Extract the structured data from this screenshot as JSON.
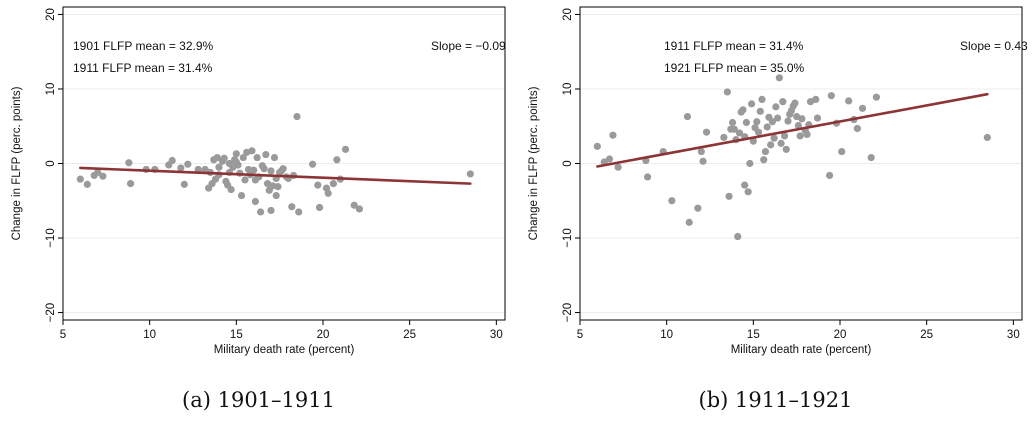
{
  "colors": {
    "points": "#9a9a9a",
    "fit_line": "#8c3436",
    "frame": "#000000",
    "grid": "#ececec"
  },
  "chart_data": [
    {
      "type": "scatter",
      "caption": "(a) 1901–1911",
      "xlabel": "Military death rate (percent)",
      "ylabel": "Change in FLFP (perc. points)",
      "xlim": [
        5,
        30.5
      ],
      "ylim": [
        -21,
        21
      ],
      "xticks": [
        5,
        10,
        15,
        20,
        25,
        30
      ],
      "xtick_labels": [
        "5",
        "10",
        "15",
        "20",
        "25",
        "30"
      ],
      "yticks": [
        -20,
        -10,
        0,
        10,
        20
      ],
      "ytick_labels": [
        "−20",
        "−10",
        "0",
        "10",
        "20"
      ],
      "grid": true,
      "annotations": {
        "mean1": "1901 FLFP mean = 32.9%",
        "mean2": "1911 FLFP mean = 31.4%",
        "slope": "Slope = −0.09"
      },
      "fit_line": {
        "x": [
          6.0,
          28.5
        ],
        "y": [
          -0.6,
          -2.7
        ]
      },
      "points": {
        "x": [
          6.0,
          6.4,
          6.8,
          7.0,
          7.3,
          8.8,
          8.9,
          9.8,
          10.3,
          11.1,
          11.3,
          11.8,
          12.0,
          12.2,
          12.8,
          13.2,
          13.4,
          13.5,
          13.6,
          13.7,
          13.8,
          13.9,
          14.0,
          14.0,
          14.2,
          14.3,
          14.4,
          14.5,
          14.6,
          14.6,
          14.7,
          14.8,
          14.9,
          15.0,
          15.0,
          15.1,
          15.2,
          15.3,
          15.4,
          15.5,
          15.6,
          15.7,
          15.8,
          15.9,
          16.0,
          16.1,
          16.1,
          16.2,
          16.3,
          16.4,
          16.5,
          16.6,
          16.7,
          16.8,
          16.9,
          17.0,
          17.0,
          17.1,
          17.2,
          17.3,
          17.3,
          17.4,
          17.5,
          17.6,
          17.7,
          17.9,
          18.0,
          18.2,
          18.3,
          18.5,
          18.6,
          19.4,
          19.7,
          19.8,
          20.2,
          20.3,
          20.6,
          20.8,
          21.0,
          21.3,
          21.8,
          22.1,
          28.5
        ],
        "y": [
          -2.1,
          -2.8,
          -1.6,
          -1.2,
          -1.7,
          0.1,
          -2.7,
          -0.8,
          -0.8,
          -0.2,
          0.4,
          -0.6,
          -2.8,
          -0.1,
          -0.8,
          -0.8,
          -3.3,
          -1.2,
          -2.7,
          0.5,
          -2.1,
          0.8,
          -1.5,
          -0.5,
          0.3,
          0.7,
          -2.4,
          -2.9,
          0.0,
          -1.2,
          -3.5,
          -0.5,
          0.5,
          1.3,
          0.2,
          -0.2,
          -1.3,
          -4.3,
          0.8,
          -2.2,
          1.5,
          -0.8,
          -1.5,
          1.7,
          -0.9,
          -2.2,
          -5.1,
          0.8,
          -1.8,
          -6.5,
          -0.3,
          -0.7,
          1.2,
          -2.7,
          -3.6,
          -6.3,
          -1.0,
          -3.0,
          0.8,
          -2.0,
          -4.3,
          -3.1,
          -1.2,
          -1.0,
          -0.7,
          -1.8,
          -2.0,
          -5.8,
          -1.6,
          6.3,
          -6.5,
          -0.1,
          -2.9,
          -5.9,
          -3.3,
          -4.0,
          -2.7,
          0.5,
          -2.1,
          1.9,
          -5.6,
          -6.1,
          -1.4
        ]
      }
    },
    {
      "type": "scatter",
      "caption": "(b) 1911–1921",
      "xlabel": "Military death rate (percent)",
      "ylabel": "Change in FLFP (perc. points)",
      "xlim": [
        5,
        30.5
      ],
      "ylim": [
        -21,
        21
      ],
      "xticks": [
        5,
        10,
        15,
        20,
        25,
        30
      ],
      "xtick_labels": [
        "5",
        "10",
        "15",
        "20",
        "25",
        "30"
      ],
      "yticks": [
        -20,
        -10,
        0,
        10,
        20
      ],
      "ytick_labels": [
        "−20",
        "−10",
        "0",
        "10",
        "20"
      ],
      "grid": true,
      "annotations": {
        "mean1": "1911 FLFP mean = 31.4%",
        "mean2": "1921 FLFP mean = 35.0%",
        "slope": "Slope = 0.43"
      },
      "fit_line": {
        "x": [
          6.0,
          28.5
        ],
        "y": [
          -0.4,
          9.3
        ]
      },
      "points": {
        "x": [
          6.0,
          6.4,
          6.7,
          6.9,
          7.2,
          8.8,
          8.9,
          9.8,
          10.3,
          11.2,
          11.3,
          11.8,
          12.0,
          12.1,
          12.3,
          13.3,
          13.5,
          13.6,
          13.7,
          13.8,
          13.9,
          14.0,
          14.1,
          14.2,
          14.3,
          14.4,
          14.5,
          14.5,
          14.6,
          14.7,
          14.8,
          14.9,
          15.0,
          15.1,
          15.2,
          15.3,
          15.4,
          15.5,
          15.6,
          15.7,
          15.8,
          15.9,
          16.0,
          16.1,
          16.2,
          16.3,
          16.4,
          16.5,
          16.6,
          16.7,
          16.8,
          16.9,
          17.0,
          17.1,
          17.2,
          17.3,
          17.4,
          17.5,
          17.6,
          17.7,
          17.8,
          18.0,
          18.1,
          18.2,
          18.3,
          18.6,
          18.7,
          19.4,
          19.5,
          19.8,
          20.1,
          20.5,
          20.8,
          21.0,
          21.3,
          21.8,
          22.1,
          28.5
        ],
        "y": [
          2.3,
          0.2,
          0.6,
          3.8,
          -0.5,
          0.4,
          -1.8,
          1.6,
          -5.0,
          6.3,
          -7.9,
          -6.0,
          1.6,
          0.3,
          4.2,
          3.5,
          9.6,
          -4.4,
          4.6,
          5.5,
          4.6,
          3.2,
          -9.8,
          4.1,
          6.9,
          7.2,
          3.6,
          -2.9,
          5.5,
          -3.8,
          0.0,
          8.0,
          3.0,
          4.8,
          5.6,
          4.2,
          7.0,
          8.6,
          0.5,
          1.6,
          4.9,
          6.2,
          2.5,
          5.6,
          3.4,
          7.6,
          6.1,
          11.5,
          2.7,
          8.3,
          3.7,
          1.9,
          5.7,
          6.6,
          7.1,
          7.7,
          8.1,
          6.3,
          5.1,
          3.7,
          6.0,
          4.4,
          3.9,
          5.2,
          8.3,
          8.6,
          6.1,
          -1.6,
          9.1,
          5.4,
          1.6,
          8.4,
          5.9,
          4.7,
          7.4,
          0.8,
          8.9,
          3.5
        ]
      }
    }
  ]
}
